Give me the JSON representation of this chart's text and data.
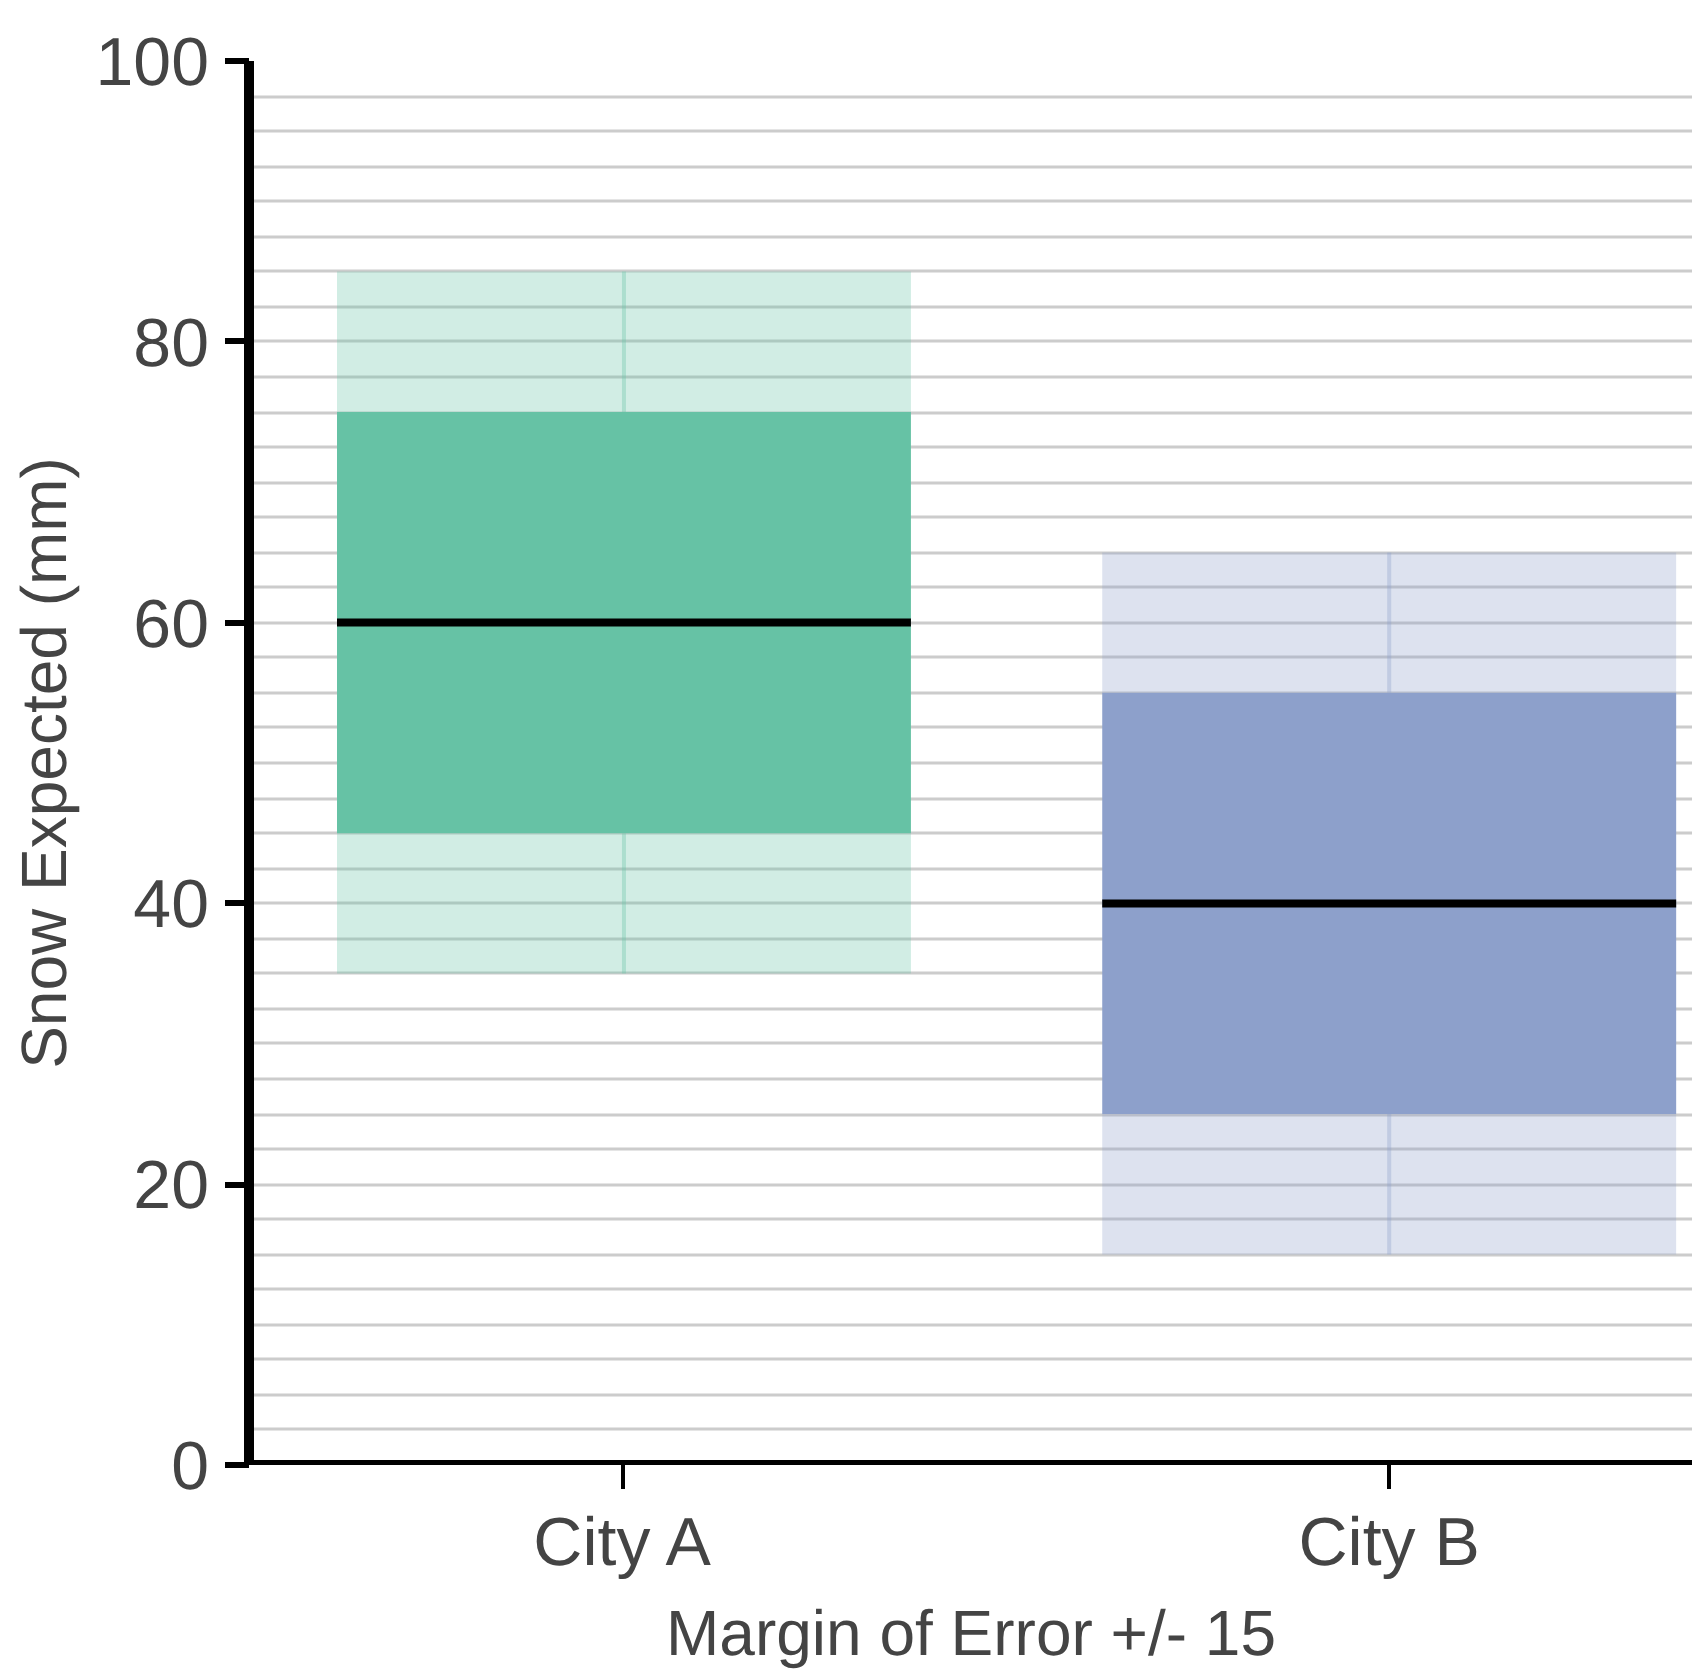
{
  "chart_data": {
    "type": "box",
    "xlabel": "Margin of Error +/- 15",
    "ylabel": "Snow Expected (mm)",
    "categories": [
      "City A",
      "City B"
    ],
    "series": [
      {
        "color": "#66c2a5",
        "boxes": [
          {
            "low": 35,
            "q1": 45,
            "median": 60,
            "q3": 75,
            "high": 85
          },
          null
        ]
      },
      {
        "color": "#8da0cb",
        "boxes": [
          null,
          {
            "low": 15,
            "q1": 25,
            "median": 40,
            "q3": 55,
            "high": 65
          }
        ]
      }
    ],
    "ylim": [
      0,
      100
    ],
    "yticks": [
      0,
      20,
      40,
      60,
      80,
      100
    ],
    "grid": "y"
  }
}
